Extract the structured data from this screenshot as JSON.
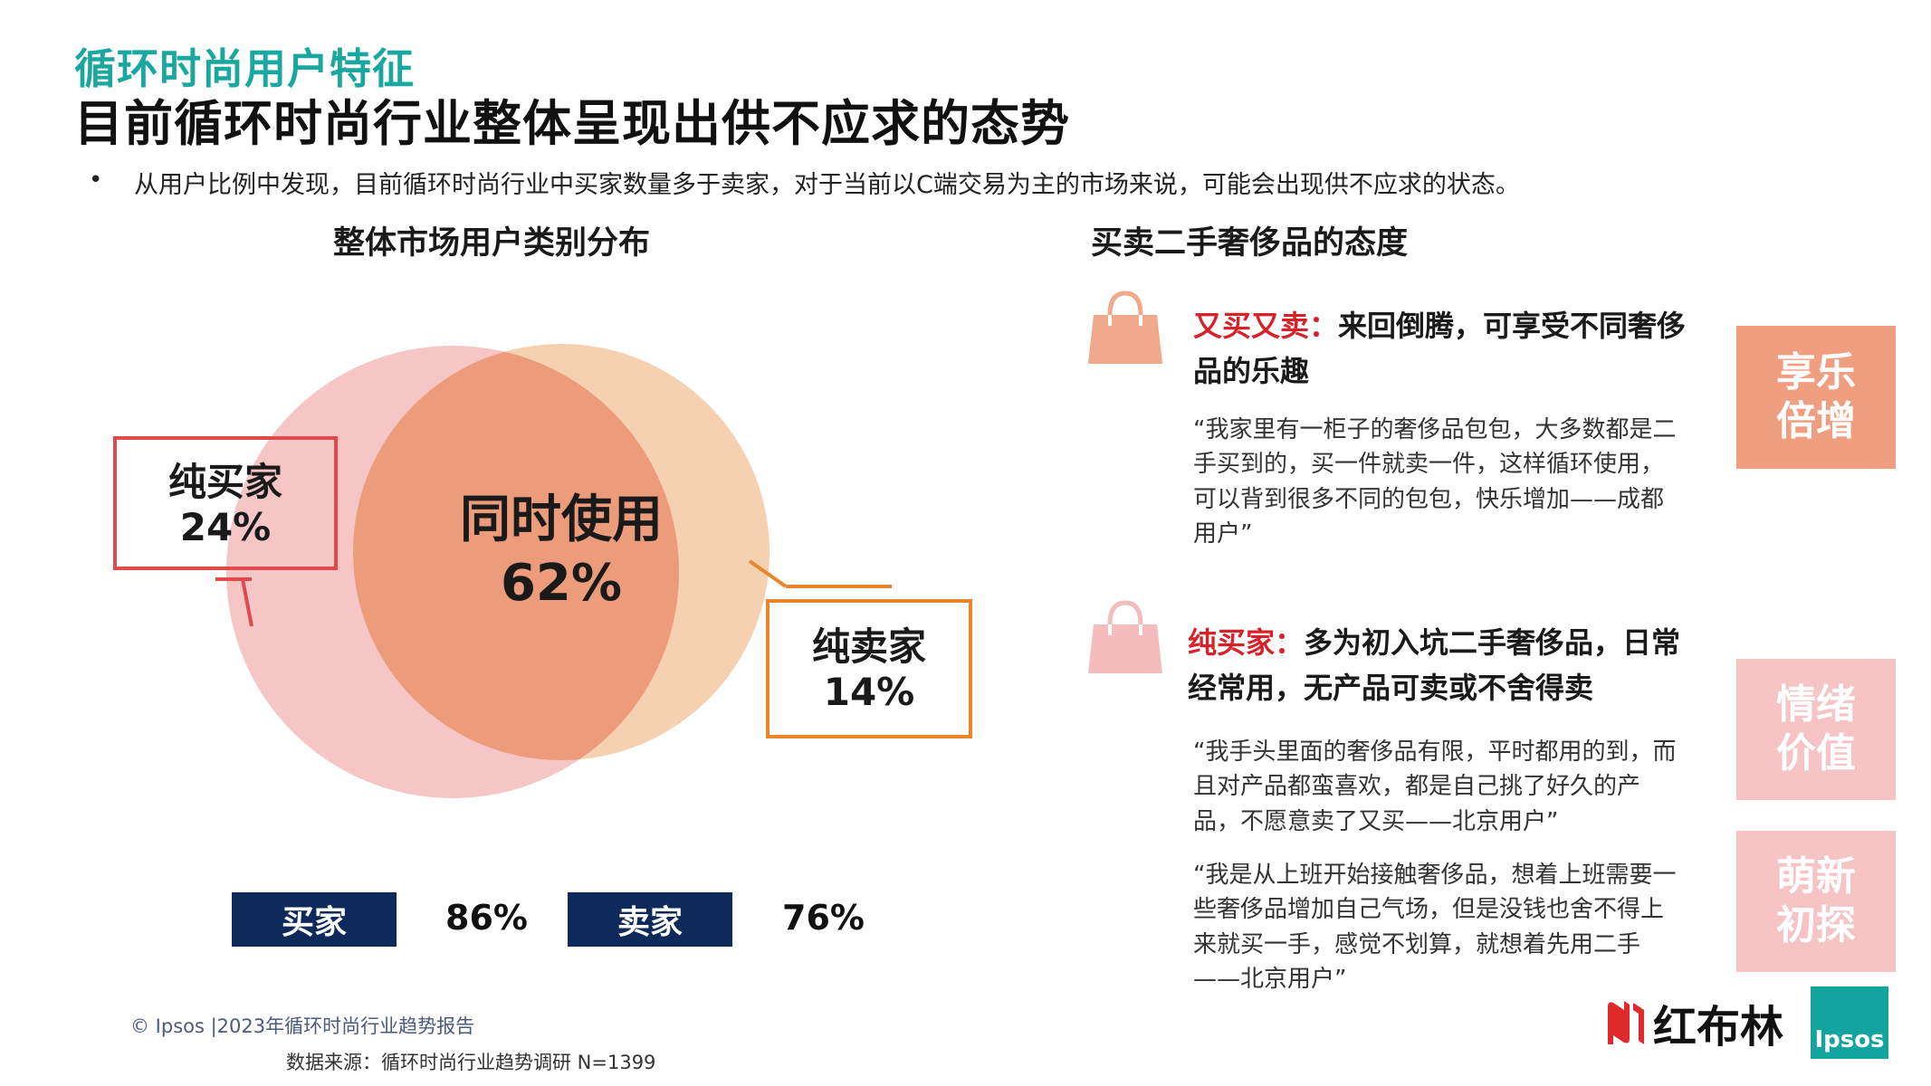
{
  "header": {
    "subtitle": "循环时尚用户特征",
    "title": "目前循环时尚行业整体呈现出供不应求的态势"
  },
  "bullet": {
    "dot": "•",
    "text": "从用户比例中发现，目前循环时尚行业中买家数量多于卖家，对于当前以C端交易为主的市场来说，可能会出现供不应求的状态。"
  },
  "left_section": {
    "title": "整体市场用户类别分布",
    "segments": [
      {
        "name": "同时使用",
        "percent": "62%"
      },
      {
        "name": "纯买家",
        "percent": "24%"
      },
      {
        "name": "纯卖家",
        "percent": "14%"
      }
    ],
    "stats": [
      {
        "label": "买家",
        "value": "86%"
      },
      {
        "label": "卖家",
        "value": "76%"
      }
    ],
    "colors": {
      "buyer_circle": "#f1b3b1",
      "seller_circle": "#f3c197",
      "overlap": "#ec9c7b",
      "buyer_box": "#e04a4a",
      "seller_box": "#e8862c",
      "stat_tag": "#0e2a5a"
    }
  },
  "right_section": {
    "title": "买卖二手奢侈品的态度",
    "items": [
      {
        "icon": "handbag-icon",
        "key": "又买又卖：",
        "headline": "来回倒腾，可享受不同奢侈品的乐趣",
        "quotes": [
          "“我家里有一柜子的奢侈品包包，大多数都是二手买到的，买一件就卖一件，这样循环使用，可以背到很多不同的包包，快乐增加——成都用户”"
        ]
      },
      {
        "icon": "handbag-icon",
        "key": "纯买家：",
        "headline": "多为初入坑二手奢侈品，日常经常用，无产品可卖或不舍得卖",
        "quotes": [
          "“我手头里面的奢侈品有限，平时都用的到，而且对产品都蛮喜欢，都是自己挑了好久的产品，不愿意卖了又买——北京用户”",
          "“我是从上班开始接触奢侈品，想着上班需要一些奢侈品增加自己气场，但是没钱也舍不得上来就买一手，感觉不划算，就想着先用二手——北京用户”"
        ]
      }
    ],
    "side_tags": [
      {
        "line1": "享乐",
        "line2": "倍增",
        "color": "#ef9f7f"
      },
      {
        "line1": "情绪",
        "line2": "价值",
        "color": "#f6c4c4"
      },
      {
        "line1": "萌新",
        "line2": "初探",
        "color": "#f6c4c4"
      }
    ]
  },
  "footer": {
    "copyright": "© Ipsos |2023年循环时尚行业趋势报告",
    "source": "数据来源：循环时尚行业趋势调研 N=1399"
  },
  "logos": {
    "hongbulin": "红布林",
    "ipsos": "Ipsos"
  }
}
